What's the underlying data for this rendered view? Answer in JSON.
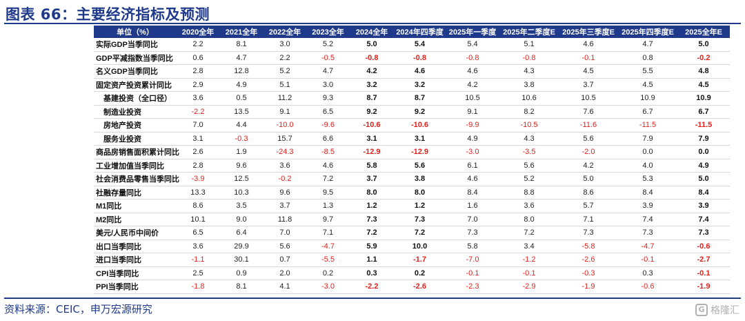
{
  "title": "图表 66：主要经济指标及预测",
  "source": "资料来源：CEIC，申万宏源研究",
  "watermark": {
    "text": "格隆汇",
    "logo": "G"
  },
  "table": {
    "header": [
      "单位（%）",
      "2020全年",
      "2021全年",
      "2022全年",
      "2023全年",
      "2024全年",
      "2024年四季度",
      "2025年一季度",
      "2025年二季度E",
      "2025年三季度E",
      "2025年四季度E",
      "2025全年E"
    ],
    "highlight_columns": [
      5,
      6,
      11
    ],
    "rows": [
      {
        "label": "实际GDP当季同比",
        "indent": false,
        "values": [
          "2.2",
          "8.1",
          "3.0",
          "5.2",
          "5.0",
          "5.4",
          "5.4",
          "5.1",
          "4.6",
          "4.7",
          "5.0"
        ]
      },
      {
        "label": "GDP平减指数当季同比",
        "indent": false,
        "values": [
          "0.6",
          "4.7",
          "2.2",
          "-0.5",
          "-0.8",
          "-0.8",
          "-0.8",
          "-0.8",
          "-0.1",
          "0.8",
          "-0.2"
        ]
      },
      {
        "label": "名义GDP当季同比",
        "indent": false,
        "values": [
          "2.8",
          "12.8",
          "5.2",
          "4.7",
          "4.2",
          "4.6",
          "4.6",
          "4.3",
          "4.5",
          "5.5",
          "4.8"
        ]
      },
      {
        "label": "固定资产投资累计同比",
        "indent": false,
        "values": [
          "2.9",
          "4.9",
          "5.1",
          "3.0",
          "3.2",
          "3.2",
          "4.2",
          "3.8",
          "3.7",
          "4.5",
          "4.5"
        ]
      },
      {
        "label": "基建投资（全口径）",
        "indent": true,
        "values": [
          "3.6",
          "0.5",
          "11.2",
          "9.3",
          "8.7",
          "8.7",
          "10.5",
          "10.6",
          "10.5",
          "10.9",
          "10.9"
        ]
      },
      {
        "label": "制造业投资",
        "indent": true,
        "values": [
          "-2.2",
          "13.5",
          "9.1",
          "6.5",
          "9.2",
          "9.2",
          "9.1",
          "8.2",
          "7.6",
          "6.7",
          "6.7"
        ]
      },
      {
        "label": "房地产投资",
        "indent": true,
        "values": [
          "7.0",
          "4.4",
          "-10.0",
          "-9.6",
          "-10.6",
          "-10.6",
          "-9.9",
          "-10.5",
          "-11.6",
          "-11.5",
          "-11.5"
        ]
      },
      {
        "label": "服务业投资",
        "indent": true,
        "values": [
          "3.1",
          "-0.3",
          "15.7",
          "6.6",
          "3.1",
          "3.1",
          "4.9",
          "4.3",
          "5.6",
          "7.9",
          "7.9"
        ]
      },
      {
        "label": "商品房销售面积累计同比",
        "indent": false,
        "values": [
          "2.6",
          "1.9",
          "-24.3",
          "-8.5",
          "-12.9",
          "-12.9",
          "-3.0",
          "-3.5",
          "-2.0",
          "0.0",
          "0.0"
        ]
      },
      {
        "label": "工业增加值当季同比",
        "indent": false,
        "values": [
          "2.8",
          "9.6",
          "3.6",
          "4.6",
          "5.8",
          "5.6",
          "6.1",
          "5.6",
          "4.2",
          "4.0",
          "4.9"
        ]
      },
      {
        "label": "社会消费品零售当季同比",
        "indent": false,
        "values": [
          "-3.9",
          "12.5",
          "-0.2",
          "7.2",
          "3.7",
          "3.8",
          "4.6",
          "5.2",
          "5.0",
          "5.3",
          "5.0"
        ]
      },
      {
        "label": "社融存量同比",
        "indent": false,
        "values": [
          "13.3",
          "10.3",
          "9.6",
          "9.5",
          "8.0",
          "8.0",
          "8.4",
          "8.8",
          "8.6",
          "8.4",
          "8.4"
        ]
      },
      {
        "label": "M1同比",
        "indent": false,
        "values": [
          "8.6",
          "3.5",
          "3.7",
          "1.3",
          "1.2",
          "1.2",
          "1.6",
          "3.6",
          "5.7",
          "3.9",
          "3.9"
        ]
      },
      {
        "label": "M2同比",
        "indent": false,
        "values": [
          "10.1",
          "9.0",
          "11.8",
          "9.7",
          "7.3",
          "7.3",
          "7.0",
          "8.0",
          "7.1",
          "7.4",
          "7.4"
        ]
      },
      {
        "label": "美元/人民币中间价",
        "indent": false,
        "values": [
          "6.5",
          "6.4",
          "7.0",
          "7.1",
          "7.2",
          "7.2",
          "7.3",
          "7.2",
          "7.3",
          "7.3",
          "7.3"
        ]
      },
      {
        "label": "出口当季同比",
        "indent": false,
        "values": [
          "3.6",
          "29.9",
          "5.6",
          "-4.7",
          "5.9",
          "10.0",
          "5.8",
          "3.4",
          "-5.8",
          "-4.7",
          "-0.6"
        ]
      },
      {
        "label": "进口当季同比",
        "indent": false,
        "values": [
          "-1.1",
          "30.1",
          "0.7",
          "-5.5",
          "1.1",
          "-1.7",
          "-7.0",
          "-1.2",
          "-2.6",
          "-0.1",
          "-2.7"
        ]
      },
      {
        "label": "CPI当季同比",
        "indent": false,
        "values": [
          "2.5",
          "0.9",
          "2.0",
          "0.2",
          "0.3",
          "0.2",
          "-0.1",
          "-0.1",
          "-0.3",
          "0.3",
          "-0.1"
        ]
      },
      {
        "label": "PPI当季同比",
        "indent": false,
        "values": [
          "-1.8",
          "8.1",
          "4.1",
          "-3.0",
          "-2.2",
          "-2.6",
          "-2.3",
          "-2.9",
          "-1.9",
          "-0.6",
          "-1.9"
        ]
      }
    ]
  }
}
